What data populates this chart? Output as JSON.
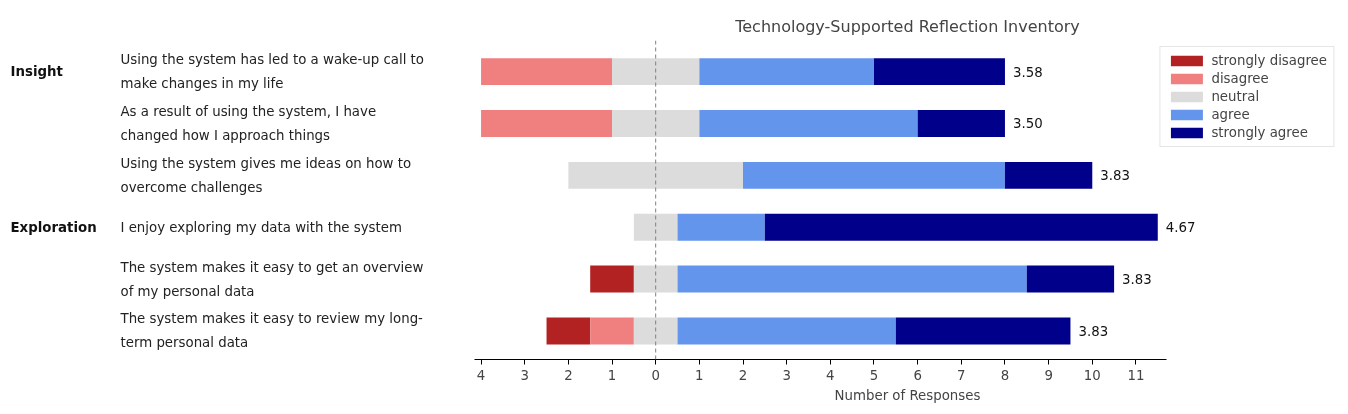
{
  "chart_data": {
    "type": "bar",
    "orientation": "horizontal",
    "title": "Technology-Supported Reflection Inventory",
    "xlabel": "Number of Responses",
    "categories": [
      "Using the system has led to a wake-up call to make changes in my life",
      "As a result of using the system, I have changed how I approach things",
      "Using the system gives me ideas on how to overcome challenges",
      "I enjoy exploring my data with the system",
      "The system makes it easy to get an overview of my personal data",
      "The system makes it easy to review my long-term personal data"
    ],
    "series": [
      {
        "name": "strongly disagree",
        "color": "#b22222",
        "base": [
          null,
          null,
          null,
          null,
          -1.5,
          -2.5
        ],
        "values": [
          null,
          null,
          null,
          null,
          1,
          1
        ]
      },
      {
        "name": "disagree",
        "color": "#f08080",
        "base": [
          -4,
          -4,
          null,
          null,
          null,
          -1.5
        ],
        "values": [
          3,
          3,
          null,
          null,
          null,
          1
        ]
      },
      {
        "name": "neutral",
        "color": "#dcdcdc",
        "base": [
          -1,
          -1,
          -2,
          -0.5,
          -0.5,
          -0.5
        ],
        "values": [
          2,
          2,
          4,
          1,
          1,
          1
        ]
      },
      {
        "name": "agree",
        "color": "#6495ed",
        "base": [
          1,
          1,
          2,
          0.5,
          0.5,
          0.5
        ],
        "values": [
          4,
          5,
          6,
          2,
          8,
          5
        ]
      },
      {
        "name": "strongly agree",
        "color": "#00008b",
        "base": [
          5,
          6,
          8,
          2.5,
          8.5,
          5.5
        ],
        "values": [
          3,
          2,
          2,
          9,
          2,
          4
        ]
      }
    ],
    "xlim": [
      -4.15,
      11.7
    ],
    "xticks": [
      {
        "value": -4,
        "label": "4"
      },
      {
        "value": -3,
        "label": "3"
      },
      {
        "value": -2,
        "label": "2"
      },
      {
        "value": -1,
        "label": "1"
      },
      0,
      1,
      2,
      3,
      4,
      5,
      6,
      7,
      8,
      9,
      10,
      11
    ],
    "ref_lines": [
      {
        "axis": "x",
        "value": 0,
        "color": "#808080",
        "line_style": "dashed"
      }
    ],
    "annotations": [
      {
        "text": "3.58",
        "x": 8,
        "y": "Using the system has led to a wake-up call to make changes in my life"
      },
      {
        "text": "3.50",
        "x": 8,
        "y": "As a result of using the system, I have changed how I approach things"
      },
      {
        "text": "3.83",
        "x": 10,
        "y": "Using the system gives me ideas on how to overcome challenges"
      },
      {
        "text": "4.67",
        "x": 11.5,
        "y": "I enjoy exploring my data with the system"
      },
      {
        "text": "3.83",
        "x": 10.5,
        "y": "The system makes it easy to get an overview of my personal data"
      },
      {
        "text": "3.83",
        "x": 9.5,
        "y": "The system makes it easy to review my long-term personal data"
      },
      "Insight",
      "Exploration"
    ],
    "grid": false,
    "legend": "top right"
  }
}
